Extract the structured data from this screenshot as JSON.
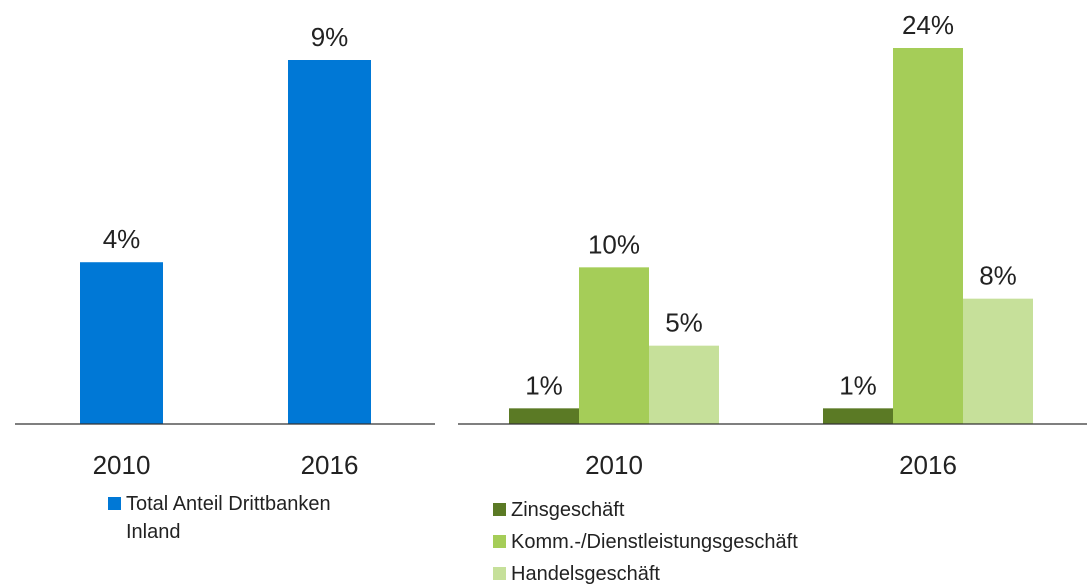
{
  "chart_data": [
    {
      "type": "bar",
      "categories": [
        "2010",
        "2016"
      ],
      "series": [
        {
          "name": "Total Anteil Drittbanken Inland",
          "color": "#0078d6",
          "values": [
            4,
            9
          ],
          "value_labels": [
            "4%",
            "9%"
          ]
        }
      ]
    },
    {
      "type": "bar",
      "categories": [
        "2010",
        "2016"
      ],
      "series": [
        {
          "name": "Zinsgeschäft",
          "color": "#5b7a25",
          "values": [
            1,
            1
          ],
          "value_labels": [
            "1%",
            "1%"
          ]
        },
        {
          "name": "Komm.-/Dienstleistungsgeschäft",
          "color": "#a5cd58",
          "values": [
            10,
            24
          ],
          "value_labels": [
            "10%",
            "24%"
          ]
        },
        {
          "name": "Handelsgeschäft",
          "color": "#c6e09a",
          "values": [
            5,
            8
          ],
          "value_labels": [
            "5%",
            "8%"
          ]
        }
      ]
    }
  ]
}
